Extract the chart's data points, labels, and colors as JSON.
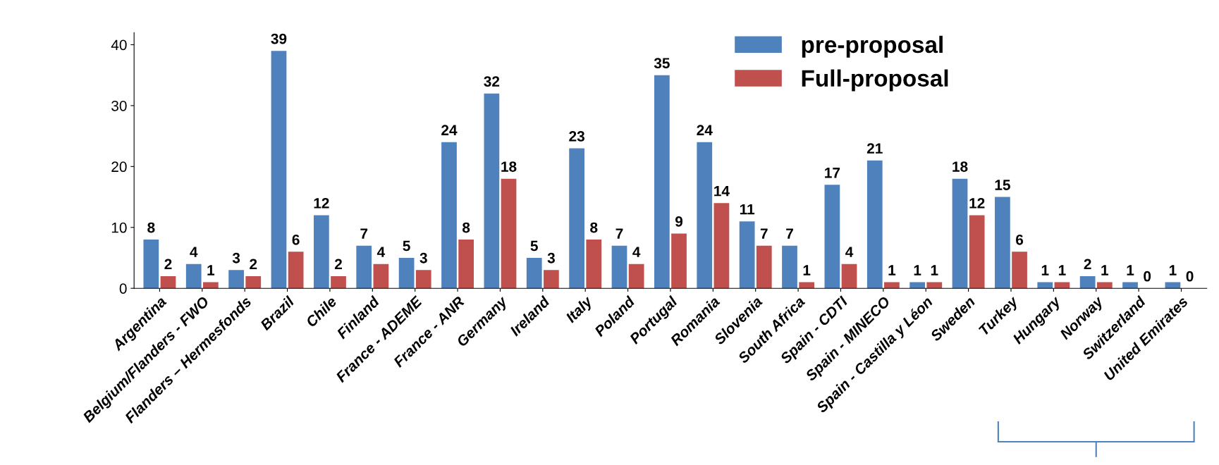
{
  "chart_data": {
    "type": "bar",
    "categories": [
      "Argentina",
      "Belgium/Flanders - FWO",
      "Flanders – Hermesfonds",
      "Brazil",
      "Chile",
      "Finland",
      "France - ADEME",
      "France - ANR",
      "Germany",
      "Ireland",
      "Italy",
      "Poland",
      "Portugal",
      "Romania",
      "Slovenia",
      "South Africa",
      "Spain - CDTI",
      "Spain - MINECO",
      "Spain - Castilla y Léon",
      "Sweden",
      "Turkey",
      "Hungary",
      "Norway",
      "Switzerland",
      "United Emirates"
    ],
    "series": [
      {
        "name": "pre-proposal",
        "color": "#4f81bd",
        "values": [
          8,
          4,
          3,
          39,
          12,
          7,
          5,
          24,
          32,
          5,
          23,
          7,
          35,
          24,
          11,
          7,
          17,
          21,
          1,
          18,
          15,
          1,
          2,
          1,
          1
        ]
      },
      {
        "name": "Full-proposal",
        "color": "#c0504d",
        "values": [
          2,
          1,
          2,
          6,
          2,
          4,
          3,
          8,
          18,
          3,
          8,
          4,
          9,
          14,
          7,
          1,
          4,
          1,
          1,
          12,
          6,
          1,
          1,
          0,
          0
        ]
      }
    ],
    "ylim": [
      0,
      42
    ],
    "yticks": [
      0,
      10,
      20,
      30,
      40
    ],
    "grid": false,
    "legend": "top",
    "data_labels": true
  }
}
